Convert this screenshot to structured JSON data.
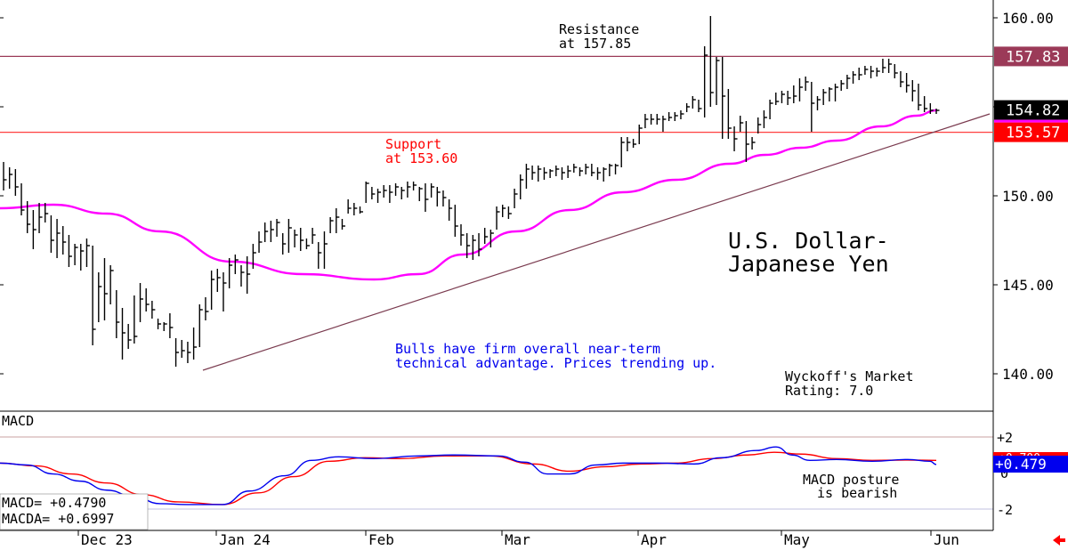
{
  "chart_data": [
    {
      "type": "bar",
      "title": "U.S. Dollar-\nJapanese Yen",
      "title_lines": [
        "U.S. Dollar-",
        "Japanese Yen"
      ],
      "y_ticks": [
        "160.00",
        "155.00",
        "150.00",
        "145.00",
        "140.00"
      ],
      "ylim": [
        139,
        161
      ],
      "x_labels": [
        "Dec 23",
        "Jan 24",
        "Feb",
        "Mar",
        "Apr",
        "May",
        "Jun"
      ],
      "price_tags": {
        "resistance": "157.83",
        "last": "154.82",
        "support": "153.57"
      },
      "levels": {
        "resistance": 157.83,
        "support": 153.57,
        "last": 154.82
      },
      "annotations": {
        "resistance_lines": [
          "Resistance",
          "at 157.85"
        ],
        "support_lines": [
          "Support",
          "at 153.60"
        ],
        "comment_lines": [
          "Bulls have firm overall near-term",
          "technical advantage. Prices trending up."
        ],
        "rating_lines": [
          "Wyckoff's Market",
          "Rating: 7.0"
        ]
      },
      "bars": [
        [
          151.9,
          150.3,
          150.9
        ],
        [
          151.6,
          150.4,
          151.2
        ],
        [
          151.5,
          150.0,
          150.5
        ],
        [
          150.7,
          148.9,
          149.2
        ],
        [
          149.7,
          147.9,
          148.4
        ],
        [
          149.2,
          147.0,
          148.1
        ],
        [
          149.6,
          147.9,
          148.8
        ],
        [
          149.6,
          148.5,
          149.0
        ],
        [
          148.9,
          146.8,
          147.5
        ],
        [
          148.7,
          146.5,
          147.9
        ],
        [
          148.3,
          146.7,
          147.4
        ],
        [
          147.8,
          146.0,
          146.6
        ],
        [
          147.3,
          146.1,
          147.1
        ],
        [
          147.3,
          145.8,
          146.9
        ],
        [
          147.6,
          146.0,
          147.2
        ],
        [
          147.2,
          141.6,
          142.5
        ],
        [
          145.7,
          142.9,
          144.9
        ],
        [
          146.5,
          143.0,
          144.5
        ],
        [
          146.1,
          143.9,
          145.8
        ],
        [
          144.7,
          142.0,
          142.9
        ],
        [
          143.7,
          140.8,
          142.3
        ],
        [
          142.8,
          141.4,
          141.9
        ],
        [
          144.4,
          141.7,
          142.1
        ],
        [
          145.1,
          142.9,
          144.2
        ],
        [
          144.8,
          143.5,
          143.9
        ],
        [
          144.1,
          143.1,
          143.6
        ],
        [
          143.1,
          142.5,
          142.8
        ],
        [
          142.9,
          142.4,
          142.8
        ],
        [
          143.4,
          142.0,
          142.6
        ],
        [
          142.0,
          140.4,
          141.2
        ],
        [
          141.9,
          140.9,
          141.3
        ],
        [
          141.8,
          140.6,
          141.2
        ],
        [
          142.6,
          140.8,
          141.5
        ],
        [
          143.9,
          141.5,
          143.6
        ],
        [
          144.3,
          143.0,
          143.5
        ],
        [
          145.8,
          143.6,
          145.3
        ],
        [
          145.9,
          144.6,
          145.4
        ],
        [
          145.7,
          143.5,
          145.1
        ],
        [
          146.5,
          144.8,
          146.1
        ],
        [
          146.7,
          145.6,
          146.4
        ],
        [
          146.1,
          144.9,
          145.7
        ],
        [
          146.6,
          144.5,
          145.6
        ],
        [
          147.3,
          145.9,
          146.8
        ],
        [
          148.0,
          146.8,
          147.4
        ],
        [
          148.5,
          147.4,
          148.0
        ],
        [
          148.6,
          147.4,
          148.1
        ],
        [
          148.7,
          147.7,
          148.5
        ],
        [
          147.9,
          146.7,
          147.3
        ],
        [
          148.7,
          146.8,
          148.2
        ],
        [
          148.1,
          147.1,
          147.8
        ],
        [
          148.2,
          146.9,
          147.5
        ],
        [
          147.6,
          147.0,
          147.2
        ],
        [
          148.2,
          147.3,
          147.8
        ],
        [
          147.4,
          145.9,
          146.8
        ],
        [
          148.0,
          145.9,
          147.3
        ],
        [
          148.8,
          147.9,
          148.6
        ],
        [
          149.3,
          147.9,
          148.8
        ],
        [
          148.7,
          148.1,
          148.3
        ],
        [
          149.8,
          149.0,
          149.3
        ],
        [
          149.6,
          148.9,
          149.3
        ],
        [
          149.4,
          149.0,
          149.1
        ],
        [
          150.8,
          149.6,
          150.7
        ],
        [
          150.5,
          149.8,
          150.1
        ],
        [
          150.4,
          149.6,
          150.2
        ],
        [
          150.6,
          149.9,
          150.3
        ],
        [
          150.6,
          149.6,
          150.2
        ],
        [
          150.7,
          150.0,
          150.5
        ],
        [
          150.5,
          149.8,
          150.3
        ],
        [
          150.8,
          149.9,
          150.5
        ],
        [
          150.8,
          150.3,
          150.6
        ],
        [
          150.5,
          149.7,
          150.4
        ],
        [
          150.7,
          149.1,
          149.8
        ],
        [
          150.7,
          149.9,
          150.5
        ],
        [
          150.5,
          149.4,
          150.2
        ],
        [
          150.3,
          149.4,
          149.9
        ],
        [
          149.8,
          148.6,
          149.3
        ],
        [
          149.5,
          147.7,
          148.3
        ],
        [
          148.4,
          147.2,
          147.8
        ],
        [
          147.9,
          146.5,
          147.2
        ],
        [
          147.8,
          146.4,
          147.5
        ],
        [
          147.9,
          146.6,
          147.0
        ],
        [
          148.2,
          147.3,
          147.7
        ],
        [
          148.1,
          147.1,
          147.9
        ],
        [
          149.4,
          148.1,
          149.1
        ],
        [
          149.5,
          148.8,
          149.3
        ],
        [
          149.4,
          148.7,
          149.0
        ],
        [
          150.4,
          149.3,
          150.1
        ],
        [
          151.2,
          149.8,
          150.9
        ],
        [
          151.8,
          150.4,
          151.5
        ],
        [
          151.7,
          150.9,
          151.3
        ],
        [
          151.7,
          150.8,
          151.5
        ],
        [
          151.6,
          150.9,
          151.3
        ],
        [
          151.5,
          151.0,
          151.4
        ],
        [
          151.7,
          151.1,
          151.5
        ],
        [
          151.6,
          150.9,
          151.3
        ],
        [
          151.7,
          151.0,
          151.4
        ],
        [
          151.8,
          151.3,
          151.6
        ],
        [
          151.6,
          151.1,
          151.4
        ],
        [
          151.8,
          151.2,
          151.6
        ],
        [
          151.8,
          151.1,
          151.3
        ],
        [
          151.6,
          150.9,
          151.3
        ],
        [
          151.6,
          150.8,
          151.5
        ],
        [
          151.8,
          151.1,
          151.7
        ],
        [
          151.8,
          151.2,
          151.7
        ],
        [
          153.3,
          151.6,
          153.0
        ],
        [
          153.3,
          152.5,
          153.0
        ],
        [
          153.2,
          152.7,
          152.9
        ],
        [
          154.0,
          152.9,
          153.8
        ],
        [
          154.6,
          153.8,
          154.3
        ],
        [
          154.6,
          154.0,
          154.3
        ],
        [
          154.6,
          154.0,
          154.3
        ],
        [
          154.5,
          153.6,
          154.3
        ],
        [
          154.7,
          154.2,
          154.4
        ],
        [
          154.7,
          154.2,
          154.5
        ],
        [
          154.8,
          154.3,
          154.6
        ],
        [
          155.2,
          154.7,
          155.0
        ],
        [
          155.6,
          154.9,
          155.4
        ],
        [
          155.4,
          154.7,
          154.9
        ],
        [
          158.4,
          154.4,
          157.9
        ],
        [
          160.1,
          155.0,
          155.8
        ],
        [
          157.8,
          155.1,
          157.6
        ],
        [
          157.8,
          153.2,
          155.6
        ],
        [
          156.0,
          153.2,
          153.8
        ],
        [
          153.9,
          152.5,
          153.2
        ],
        [
          154.5,
          153.6,
          154.1
        ],
        [
          154.2,
          151.9,
          152.9
        ],
        [
          153.3,
          152.6,
          153.0
        ],
        [
          154.4,
          153.5,
          154.0
        ],
        [
          154.8,
          153.8,
          154.4
        ],
        [
          155.4,
          154.3,
          155.2
        ],
        [
          155.8,
          155.1,
          155.3
        ],
        [
          155.9,
          155.2,
          155.7
        ],
        [
          155.9,
          155.1,
          155.5
        ],
        [
          156.2,
          155.2,
          155.6
        ],
        [
          156.6,
          155.3,
          156.1
        ],
        [
          156.7,
          155.9,
          156.4
        ],
        [
          156.4,
          153.6,
          155.2
        ],
        [
          155.6,
          154.8,
          155.4
        ],
        [
          156.0,
          155.1,
          155.8
        ],
        [
          156.1,
          155.3,
          156.0
        ],
        [
          156.3,
          155.3,
          156.1
        ],
        [
          156.5,
          155.9,
          156.3
        ],
        [
          156.8,
          156.0,
          156.6
        ],
        [
          157.0,
          156.3,
          156.8
        ],
        [
          157.2,
          156.5,
          156.8
        ],
        [
          157.3,
          156.8,
          157.1
        ],
        [
          157.3,
          156.6,
          157.0
        ],
        [
          157.2,
          156.7,
          157.0
        ],
        [
          157.7,
          156.9,
          157.2
        ],
        [
          157.7,
          156.9,
          157.4
        ],
        [
          157.4,
          156.6,
          156.9
        ],
        [
          157.0,
          156.1,
          156.4
        ],
        [
          156.9,
          155.8,
          156.2
        ],
        [
          156.5,
          155.3,
          155.9
        ],
        [
          156.3,
          154.8,
          155.1
        ],
        [
          155.6,
          154.7,
          154.9
        ],
        [
          155.2,
          154.6,
          154.8
        ],
        [
          154.9,
          154.6,
          154.8
        ]
      ],
      "ma_pts": [
        [
          0,
          149.3
        ],
        [
          60,
          149.5
        ],
        [
          120,
          149.0
        ],
        [
          180,
          148.0
        ],
        [
          260,
          146.3
        ],
        [
          340,
          145.6
        ],
        [
          420,
          145.3
        ],
        [
          470,
          145.6
        ],
        [
          520,
          146.7
        ],
        [
          580,
          148.0
        ],
        [
          640,
          149.2
        ],
        [
          700,
          150.2
        ],
        [
          760,
          150.9
        ],
        [
          820,
          151.8
        ],
        [
          860,
          152.3
        ],
        [
          900,
          152.7
        ],
        [
          940,
          153.1
        ],
        [
          990,
          153.9
        ],
        [
          1030,
          154.5
        ],
        [
          1052,
          154.8
        ]
      ],
      "trendline": [
        [
          228,
          140.2
        ],
        [
          1112,
          154.6
        ]
      ],
      "macd": {
        "label": "MACD",
        "ticks": [
          "+2",
          "0",
          "-2"
        ],
        "ylim": [
          -2.6,
          2.6
        ],
        "readouts": {
          "macd": "MACD=  +0.4790",
          "macda": "MACDA= +0.6997"
        },
        "tag_macd": "+0.479",
        "tag_macda": "+0.700",
        "comment_lines": [
          "MACD posture",
          "is bearish"
        ],
        "macd_pts": [
          [
            0,
            0.55
          ],
          [
            30,
            0.45
          ],
          [
            60,
            -0.05
          ],
          [
            90,
            -0.45
          ],
          [
            120,
            -0.95
          ],
          [
            150,
            -1.3
          ],
          [
            180,
            -1.7
          ],
          [
            210,
            -1.75
          ],
          [
            250,
            -1.75
          ],
          [
            280,
            -1.0
          ],
          [
            320,
            -0.15
          ],
          [
            350,
            0.7
          ],
          [
            380,
            0.9
          ],
          [
            420,
            0.8
          ],
          [
            470,
            0.95
          ],
          [
            510,
            1.0
          ],
          [
            560,
            0.95
          ],
          [
            590,
            0.6
          ],
          [
            615,
            -0.05
          ],
          [
            640,
            -0.05
          ],
          [
            670,
            0.45
          ],
          [
            700,
            0.55
          ],
          [
            740,
            0.55
          ],
          [
            780,
            0.5
          ],
          [
            810,
            0.85
          ],
          [
            850,
            1.25
          ],
          [
            872,
            1.45
          ],
          [
            890,
            1.0
          ],
          [
            910,
            0.7
          ],
          [
            940,
            0.75
          ],
          [
            980,
            0.65
          ],
          [
            1020,
            0.75
          ],
          [
            1045,
            0.65
          ],
          [
            1052,
            0.479
          ]
        ],
        "macda_pts": [
          [
            0,
            0.55
          ],
          [
            40,
            0.4
          ],
          [
            80,
            -0.05
          ],
          [
            120,
            -0.55
          ],
          [
            160,
            -1.2
          ],
          [
            200,
            -1.6
          ],
          [
            250,
            -1.75
          ],
          [
            290,
            -1.1
          ],
          [
            330,
            -0.2
          ],
          [
            370,
            0.65
          ],
          [
            410,
            0.85
          ],
          [
            450,
            0.8
          ],
          [
            500,
            0.95
          ],
          [
            550,
            0.95
          ],
          [
            600,
            0.5
          ],
          [
            640,
            0.1
          ],
          [
            680,
            0.35
          ],
          [
            720,
            0.5
          ],
          [
            760,
            0.55
          ],
          [
            800,
            0.8
          ],
          [
            840,
            1.0
          ],
          [
            870,
            1.15
          ],
          [
            900,
            1.05
          ],
          [
            940,
            0.8
          ],
          [
            980,
            0.7
          ],
          [
            1020,
            0.72
          ],
          [
            1052,
            0.7
          ]
        ]
      }
    }
  ]
}
